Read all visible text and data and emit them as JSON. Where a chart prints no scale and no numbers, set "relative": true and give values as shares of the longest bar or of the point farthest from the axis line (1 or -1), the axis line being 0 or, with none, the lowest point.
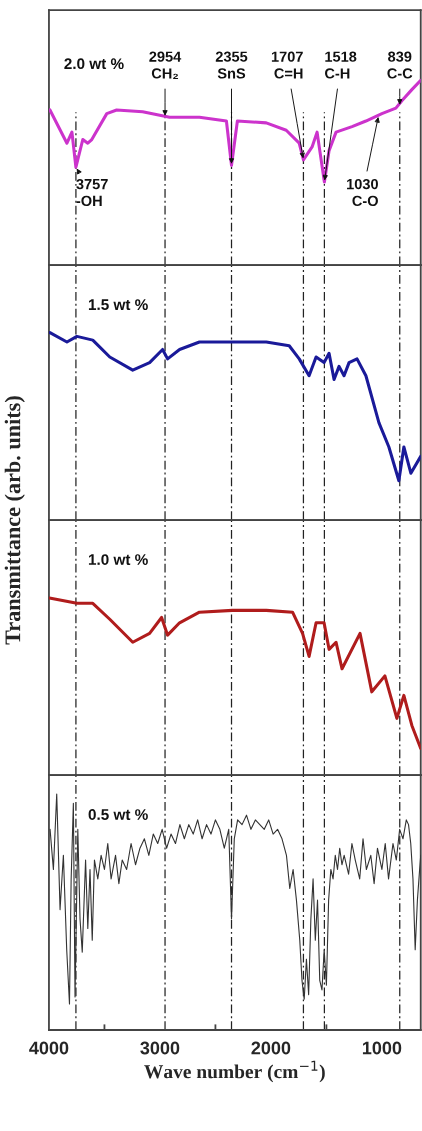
{
  "chart_data": [
    {
      "type": "line",
      "relative": true,
      "ylabel": "Transmittance (arb. units)",
      "xlim": [
        4000,
        650
      ],
      "tick_labels": false,
      "grid": false,
      "series": [
        {
          "name": "2.0 wt %",
          "color": "#cc33cc",
          "x": [
            3991,
            3838,
            3793,
            3757,
            3695,
            3650,
            3614,
            3479,
            3390,
            3156,
            2913,
            2644,
            2401,
            2355,
            2302,
            2042,
            1862,
            1745,
            1707,
            1629,
            1584,
            1518,
            1476,
            1413,
            1269,
            1144,
            1000,
            874,
            820,
            730,
            650
          ],
          "values": [
            0.84,
            0.66,
            0.72,
            0.53,
            0.68,
            0.66,
            0.68,
            0.82,
            0.84,
            0.83,
            0.8,
            0.8,
            0.78,
            0.54,
            0.78,
            0.77,
            0.73,
            0.66,
            0.57,
            0.64,
            0.72,
            0.45,
            0.62,
            0.72,
            0.75,
            0.78,
            0.82,
            0.85,
            0.89,
            0.95,
            1
          ]
        }
      ],
      "ref_lines": [
        {
          "axis": "x",
          "value": 3757,
          "line_style": "dashed",
          "color": "#222222"
        },
        {
          "axis": "x",
          "value": 2954,
          "line_style": "dashed",
          "color": "#222222"
        },
        {
          "axis": "x",
          "value": 2355,
          "line_style": "dashed",
          "color": "#222222"
        },
        {
          "axis": "x",
          "value": 1707,
          "line_style": "dashed",
          "color": "#222222"
        },
        {
          "axis": "x",
          "value": 1518,
          "line_style": "dashed",
          "color": "#222222"
        },
        {
          "axis": "x",
          "value": 839,
          "line_style": "dashed",
          "color": "#222222"
        }
      ],
      "annotations": [
        {
          "text": "3757\n-OH",
          "x": 3757,
          "y": 0.53
        },
        {
          "text": "2954\nCH₂",
          "x": 2954,
          "y": 0.8
        },
        {
          "text": "2355\nSnS",
          "x": 2355,
          "y": 0.54
        },
        {
          "text": "1707\nC=H",
          "x": 1707,
          "y": 0.57
        },
        {
          "text": "1518\nC-H",
          "x": 1518,
          "y": 0.45
        },
        {
          "text": "1030\nC-O",
          "x": 1030,
          "y": 0.81
        },
        {
          "text": "839\nC-C",
          "x": 839,
          "y": 0.86
        }
      ]
    },
    {
      "type": "line",
      "relative": true,
      "xlim": [
        4000,
        650
      ],
      "tick_labels": false,
      "grid": false,
      "series": [
        {
          "name": "1.5 wt %",
          "color": "#1a1a99",
          "x": [
            3991,
            3838,
            3748,
            3605,
            3452,
            3245,
            3093,
            2976,
            2931,
            2823,
            2644,
            2347,
            2042,
            1835,
            1745,
            1656,
            1593,
            1521,
            1476,
            1431,
            1386,
            1341,
            1296,
            1224,
            1144,
            1027,
            937,
            847,
            802,
            739,
            650
          ],
          "values": [
            1,
            0.95,
            0.98,
            0.96,
            0.87,
            0.8,
            0.84,
            0.91,
            0.86,
            0.91,
            0.95,
            0.95,
            0.95,
            0.93,
            0.86,
            0.77,
            0.87,
            0.84,
            0.89,
            0.75,
            0.82,
            0.77,
            0.84,
            0.86,
            0.77,
            0.52,
            0.39,
            0.21,
            0.39,
            0.25,
            0.34
          ]
        }
      ],
      "ref_lines": [
        {
          "axis": "x",
          "value": 3757,
          "line_style": "dashed",
          "color": "#222222"
        },
        {
          "axis": "x",
          "value": 2954,
          "line_style": "dashed",
          "color": "#222222"
        },
        {
          "axis": "x",
          "value": 2355,
          "line_style": "dashed",
          "color": "#222222"
        },
        {
          "axis": "x",
          "value": 1707,
          "line_style": "dashed",
          "color": "#222222"
        },
        {
          "axis": "x",
          "value": 1518,
          "line_style": "dashed",
          "color": "#222222"
        },
        {
          "axis": "x",
          "value": 839,
          "line_style": "dashed",
          "color": "#222222"
        }
      ]
    },
    {
      "type": "line",
      "relative": true,
      "xlim": [
        4000,
        650
      ],
      "tick_labels": false,
      "grid": false,
      "series": [
        {
          "name": "1.0 wt %",
          "color": "#b01c1c",
          "x": [
            3996,
            3748,
            3605,
            3452,
            3245,
            3093,
            2985,
            2931,
            2823,
            2644,
            2347,
            2042,
            1805,
            1715,
            1656,
            1593,
            1521,
            1476,
            1413,
            1359,
            1197,
            1091,
            973,
            865,
            802,
            730,
            650
          ],
          "values": [
            1,
            0.97,
            0.97,
            0.88,
            0.75,
            0.8,
            0.89,
            0.79,
            0.86,
            0.92,
            0.93,
            0.93,
            0.92,
            0.8,
            0.67,
            0.86,
            0.86,
            0.71,
            0.75,
            0.6,
            0.8,
            0.47,
            0.56,
            0.32,
            0.45,
            0.28,
            0.15
          ]
        }
      ],
      "ref_lines": [
        {
          "axis": "x",
          "value": 3757,
          "line_style": "dashed",
          "color": "#222222"
        },
        {
          "axis": "x",
          "value": 2954,
          "line_style": "dashed",
          "color": "#222222"
        },
        {
          "axis": "x",
          "value": 2355,
          "line_style": "dashed",
          "color": "#222222"
        },
        {
          "axis": "x",
          "value": 1707,
          "line_style": "dashed",
          "color": "#222222"
        },
        {
          "axis": "x",
          "value": 1518,
          "line_style": "dashed",
          "color": "#222222"
        },
        {
          "axis": "x",
          "value": 839,
          "line_style": "dashed",
          "color": "#222222"
        }
      ]
    },
    {
      "type": "line",
      "relative": true,
      "xlabel": "Wave number (cm$^{−1}$)",
      "xlim": [
        4000,
        650
      ],
      "tick_labels": "x",
      "grid": false,
      "xticks": [
        4000,
        {
          "value": 3500,
          "label": null
        },
        3000,
        {
          "value": 2500,
          "label": null
        },
        2000,
        {
          "value": 1500,
          "label": null
        },
        1000
      ],
      "series": [
        {
          "name": "0.5 wt %",
          "color": "#333333",
          "x": [
            3990,
            3960,
            3930,
            3900,
            3870,
            3840,
            3815,
            3800,
            3780,
            3765,
            3740,
            3720,
            3700,
            3670,
            3650,
            3630,
            3610,
            3590,
            3560,
            3530,
            3500,
            3470,
            3440,
            3400,
            3370,
            3340,
            3300,
            3260,
            3220,
            3180,
            3140,
            3100,
            3060,
            3020,
            2980,
            2940,
            2900,
            2860,
            2820,
            2780,
            2740,
            2700,
            2660,
            2620,
            2580,
            2540,
            2500,
            2460,
            2420,
            2380,
            2355,
            2330,
            2300,
            2260,
            2220,
            2180,
            2140,
            2100,
            2060,
            2020,
            1980,
            1940,
            1900,
            1860,
            1830,
            1800,
            1770,
            1740,
            1720,
            1700,
            1680,
            1660,
            1640,
            1620,
            1600,
            1580,
            1560,
            1540,
            1520,
            1500,
            1480,
            1460,
            1440,
            1420,
            1400,
            1380,
            1360,
            1340,
            1300,
            1270,
            1240,
            1200,
            1170,
            1140,
            1100,
            1070,
            1040,
            1000,
            970,
            940,
            900,
            870,
            840,
            810,
            780,
            760,
            740,
            720,
            700,
            680,
            660,
            650
          ],
          "values": [
            0.85,
            0.68,
            1,
            0.51,
            0.74,
            0.34,
            0.11,
            0.64,
            0.96,
            0.14,
            0.85,
            0.47,
            0.33,
            0.72,
            0.43,
            0.68,
            0.38,
            0.72,
            0.64,
            0.74,
            0.68,
            0.79,
            0.64,
            0.74,
            0.62,
            0.72,
            0.68,
            0.79,
            0.7,
            0.77,
            0.81,
            0.74,
            0.83,
            0.79,
            0.85,
            0.77,
            0.83,
            0.79,
            0.87,
            0.81,
            0.87,
            0.83,
            0.89,
            0.81,
            0.87,
            0.83,
            0.89,
            0.85,
            0.77,
            0.85,
            0.47,
            0.81,
            0.89,
            0.87,
            0.91,
            0.85,
            0.89,
            0.87,
            0.85,
            0.89,
            0.83,
            0.85,
            0.81,
            0.74,
            0.6,
            0.68,
            0.55,
            0.38,
            0.21,
            0.13,
            0.3,
            0.15,
            0.47,
            0.64,
            0.38,
            0.55,
            0.21,
            0.17,
            0.34,
            0.19,
            0.55,
            0.68,
            0.64,
            0.74,
            0.68,
            0.77,
            0.7,
            0.74,
            0.66,
            0.79,
            0.72,
            0.64,
            0.81,
            0.68,
            0.74,
            0.62,
            0.77,
            0.68,
            0.79,
            0.64,
            0.79,
            0.72,
            0.85,
            0.81,
            0.89,
            0.87,
            0.79,
            0.64,
            0.34,
            0.55,
            0.68,
            0.74
          ]
        }
      ],
      "ref_lines": [
        {
          "axis": "x",
          "value": 3757,
          "line_style": "dashed",
          "color": "#222222"
        },
        {
          "axis": "x",
          "value": 2954,
          "line_style": "dashed",
          "color": "#222222"
        },
        {
          "axis": "x",
          "value": 2355,
          "line_style": "dashed",
          "color": "#222222"
        },
        {
          "axis": "x",
          "value": 1707,
          "line_style": "dashed",
          "color": "#222222"
        },
        {
          "axis": "x",
          "value": 1518,
          "line_style": "dashed",
          "color": "#222222"
        },
        {
          "axis": "x",
          "value": 839,
          "line_style": "dashed",
          "color": "#222222"
        }
      ]
    }
  ]
}
